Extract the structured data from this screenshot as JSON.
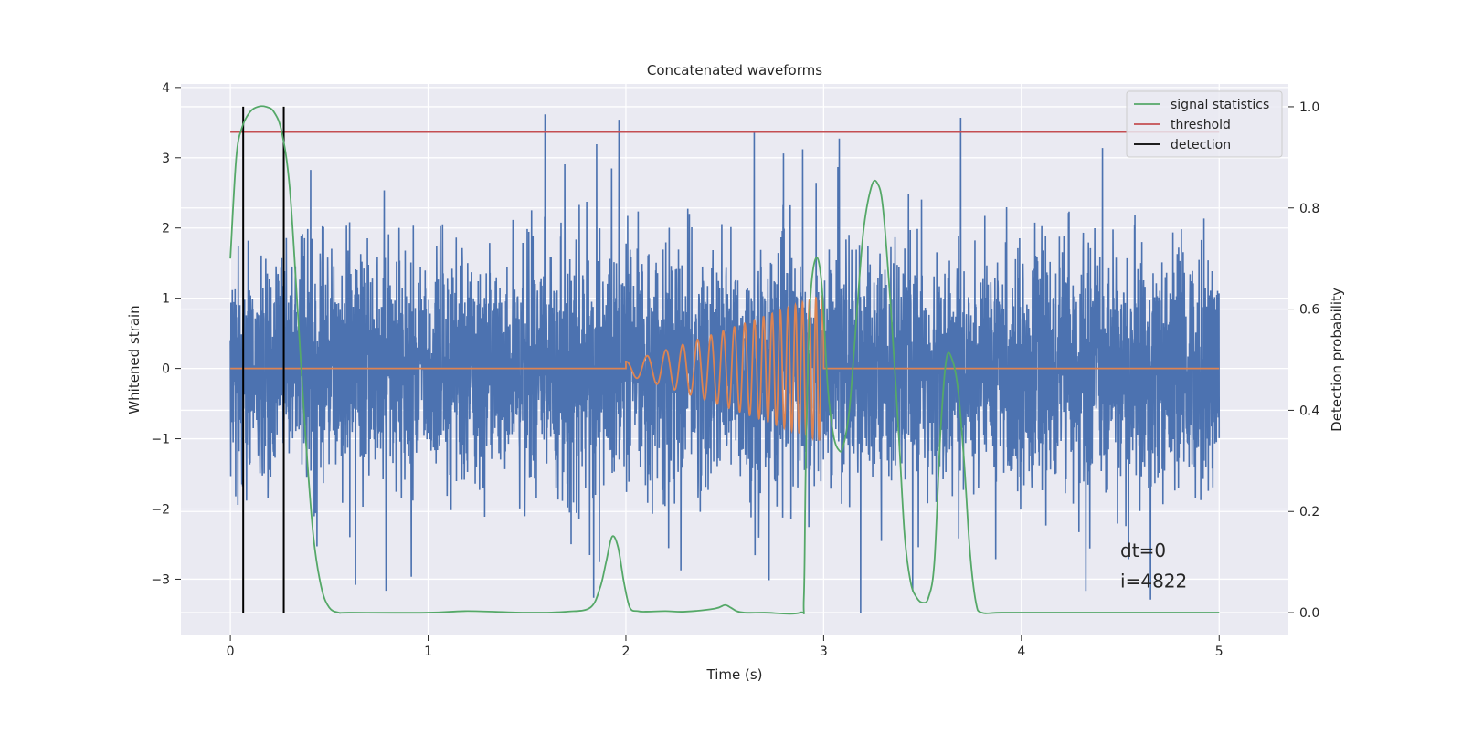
{
  "chart_data": {
    "type": "line",
    "title": "Concatenated waveforms",
    "xlabel": "Time (s)",
    "ylabel": "Whitened strain",
    "y2label": "Detection probability",
    "xlim": [
      -0.25,
      5.35
    ],
    "ylim": [
      -3.8,
      4.05
    ],
    "y2lim": [
      -0.045,
      1.045
    ],
    "xticks": [
      0,
      1,
      2,
      3,
      4,
      5
    ],
    "yticks": [
      -3,
      -2,
      -1,
      0,
      1,
      2,
      3,
      4
    ],
    "y2ticks": [
      0.0,
      0.2,
      0.4,
      0.6,
      0.8,
      1.0
    ],
    "grid": true,
    "legend_position": "top-right",
    "colors": {
      "strain": "#4c72b0",
      "template": "#dd8452",
      "signal_statistics": "#55a868",
      "threshold": "#c44e52",
      "detection": "#000000",
      "background": "#eaeaf2",
      "grid": "#ffffff"
    },
    "series": [
      {
        "name": "signal statistics",
        "axis": "right",
        "x": [
          0.0,
          0.03,
          0.06,
          0.1,
          0.14,
          0.18,
          0.22,
          0.26,
          0.3,
          0.34,
          0.38,
          0.42,
          0.46,
          0.5,
          0.55,
          0.6,
          1.0,
          1.2,
          1.5,
          1.7,
          1.82,
          1.87,
          1.9,
          1.93,
          1.96,
          1.99,
          2.02,
          2.06,
          2.1,
          2.2,
          2.3,
          2.45,
          2.5,
          2.53,
          2.56,
          2.6,
          2.7,
          2.88,
          2.9,
          2.91,
          2.93,
          2.96,
          2.99,
          3.02,
          3.05,
          3.08,
          3.1,
          3.13,
          3.16,
          3.2,
          3.24,
          3.27,
          3.3,
          3.34,
          3.38,
          3.41,
          3.44,
          3.47,
          3.5,
          3.53,
          3.56,
          3.59,
          3.62,
          3.65,
          3.68,
          3.71,
          3.74,
          3.77,
          3.8,
          3.9,
          4.2,
          4.6,
          5.0
        ],
        "values": [
          0.7,
          0.9,
          0.96,
          0.99,
          1.0,
          1.0,
          0.99,
          0.95,
          0.84,
          0.6,
          0.35,
          0.15,
          0.05,
          0.01,
          0.0,
          0.0,
          0.0,
          0.003,
          0.0,
          0.002,
          0.01,
          0.05,
          0.1,
          0.15,
          0.13,
          0.06,
          0.01,
          0.003,
          0.002,
          0.003,
          0.002,
          0.008,
          0.015,
          0.01,
          0.003,
          0.0,
          0.0,
          0.0,
          0.03,
          0.3,
          0.6,
          0.7,
          0.65,
          0.45,
          0.35,
          0.32,
          0.33,
          0.4,
          0.55,
          0.75,
          0.84,
          0.85,
          0.8,
          0.6,
          0.35,
          0.15,
          0.06,
          0.03,
          0.02,
          0.03,
          0.1,
          0.35,
          0.5,
          0.5,
          0.44,
          0.3,
          0.12,
          0.02,
          0.0,
          0.0,
          0.0,
          0.0,
          0.0
        ]
      },
      {
        "name": "threshold",
        "axis": "right",
        "x": [
          0.0,
          5.0
        ],
        "values": [
          0.95,
          0.95
        ]
      },
      {
        "name": "detection",
        "axis": "right",
        "x": [
          0.065,
          0.27
        ],
        "y_range": [
          0.0,
          1.0
        ]
      },
      {
        "name": "",
        "axis": "left",
        "kind": "noise",
        "x_range": [
          0,
          5
        ],
        "sigma": 0.8,
        "spike_max": 3.7,
        "spike_min": -3.5
      },
      {
        "name": "",
        "axis": "left",
        "kind": "chirp",
        "x_range": [
          2.0,
          3.0
        ],
        "amplitude_start": 0.1,
        "amplitude_end": 1.05,
        "frequency_start": 9,
        "frequency_end": 32
      }
    ],
    "annotations": [
      {
        "text": "dt=0",
        "x": 4.5,
        "y": -2.68
      },
      {
        "text": "i=4822",
        "x": 4.5,
        "y": -3.12
      }
    ]
  }
}
